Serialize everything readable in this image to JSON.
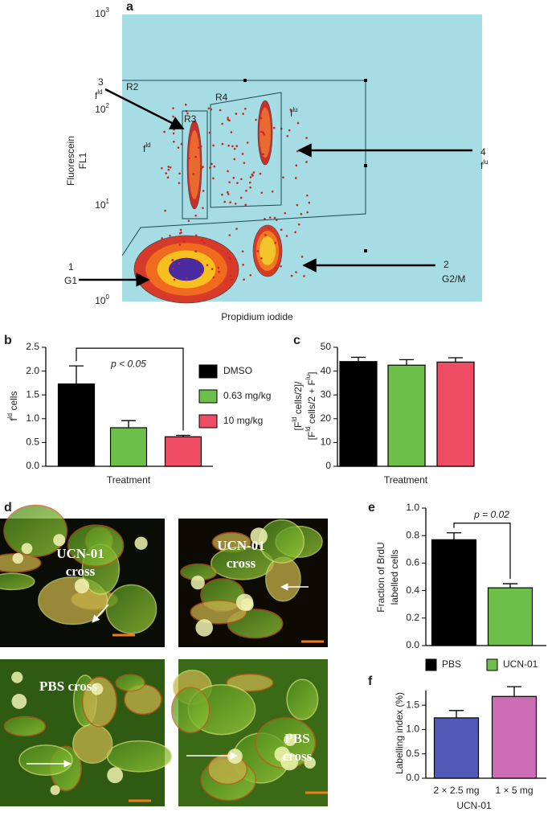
{
  "flow_plot": {
    "label": "a",
    "ylabel": [
      [
        "Fluorescein"
      ],
      [
        "FL1"
      ]
    ],
    "xlabel": "Propidium iodide",
    "yticks": [
      {
        "base": "10",
        "exp": "0"
      },
      {
        "base": "10",
        "exp": "1"
      },
      {
        "base": "10",
        "exp": "2"
      },
      {
        "base": "10",
        "exp": "3"
      }
    ],
    "gates": [
      "R2",
      "R3",
      "R4"
    ],
    "region_labels": [
      [
        "f",
        "ld"
      ],
      [
        "f",
        "lu"
      ]
    ],
    "annotations": [
      {
        "number": "3",
        "label": [
          "f",
          "ld"
        ]
      },
      {
        "number": "4",
        "label": [
          "f",
          "lu"
        ]
      },
      {
        "number": "1",
        "label": [
          "G1"
        ]
      },
      {
        "number": "2",
        "label": [
          "G2/M"
        ]
      }
    ]
  },
  "micrographs": {
    "label": "d",
    "captions": [
      [
        "UCN-01",
        "cross"
      ],
      [
        "UCN-01",
        "cross"
      ],
      [
        "PBS cross"
      ],
      [
        "PBS",
        "cross"
      ]
    ]
  },
  "chart_data": [
    {
      "type": "bar",
      "label": "b",
      "ylabel": [
        [
          "f",
          "ld",
          " cells"
        ]
      ],
      "xlabel": "Treatment",
      "ylim": [
        0,
        2.5
      ],
      "yticks": [
        {
          "value": 0,
          "label": "0.0"
        },
        0.5,
        {
          "value": 1,
          "label": "1.0"
        },
        1.5,
        {
          "value": 2,
          "label": "2.0"
        },
        2.5
      ],
      "series": [
        {
          "name": "DMSO",
          "color": "#000000",
          "values": [
            1.73
          ],
          "errors": [
            0.38
          ]
        },
        {
          "name": "0.63 mg/kg",
          "color": "#6cc04a",
          "values": [
            0.81
          ],
          "errors": [
            0.15
          ]
        },
        {
          "name": "10 mg/kg",
          "color": "#ee4d64",
          "values": [
            0.62
          ],
          "errors": [
            0.03
          ]
        }
      ],
      "annotation": "p < 0.05",
      "legend": "right"
    },
    {
      "type": "bar",
      "label": "c",
      "ylabel": [
        [
          "[F",
          "ld",
          " cells/2]/"
        ],
        [
          "[F",
          "ld",
          " cells/2 + F",
          "lu",
          "]"
        ]
      ],
      "xlabel": "Treatment",
      "ylim": [
        0,
        50
      ],
      "yticks": [
        0,
        10,
        20,
        30,
        40,
        50
      ],
      "series": [
        {
          "name": "DMSO",
          "color": "#000000",
          "values": [
            44
          ],
          "errors": [
            1.8
          ]
        },
        {
          "name": "0.63 mg/kg",
          "color": "#6cc04a",
          "values": [
            42.5
          ],
          "errors": [
            2.3
          ]
        },
        {
          "name": "10 mg/kg",
          "color": "#ee4d64",
          "values": [
            43.8
          ],
          "errors": [
            1.8
          ]
        }
      ]
    },
    {
      "type": "bar",
      "label": "e",
      "ylabel": [
        [
          "Fraction of BrdU"
        ],
        [
          "labelled cells"
        ]
      ],
      "ylim": [
        0,
        1
      ],
      "yticks": [
        {
          "value": 0,
          "label": "0.0"
        },
        0.2,
        0.4,
        0.6,
        0.8,
        {
          "value": 1,
          "label": "1.0"
        }
      ],
      "series": [
        {
          "name": "PBS",
          "color": "#000000",
          "values": [
            0.77
          ],
          "errors": [
            0.05
          ]
        },
        {
          "name": "UCN-01",
          "color": "#6cc04a",
          "values": [
            0.42
          ],
          "errors": [
            0.03
          ]
        }
      ],
      "annotation": "p = 0.02",
      "legend": "bottom"
    },
    {
      "type": "bar",
      "label": "f",
      "ylabel": [
        [
          "Labelling index (%)"
        ]
      ],
      "xlabel": "UCN-01",
      "categories": [
        "2 × 2.5 mg",
        "1 × 5 mg"
      ],
      "ylim": [
        0,
        1.8
      ],
      "yticks": [
        {
          "value": 0,
          "label": "0.0"
        },
        0.5,
        {
          "value": 1,
          "label": "1.0"
        },
        1.5
      ],
      "series": [
        {
          "colors": [
            "#4f5bb5",
            "#cc6db6"
          ],
          "values": [
            1.24,
            1.68
          ],
          "errors": [
            0.15,
            0.2
          ]
        }
      ]
    }
  ]
}
